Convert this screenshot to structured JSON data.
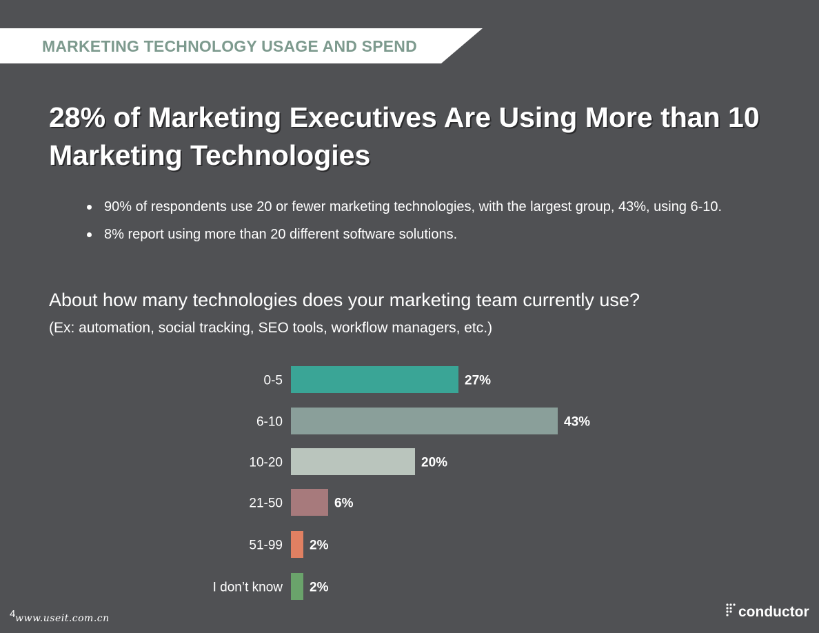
{
  "header": {
    "section_label": "MARKETING TECHNOLOGY USAGE AND SPEND",
    "banner_color": "#ffffff",
    "label_color": "#7d9a8e"
  },
  "title": "28% of Marketing Executives Are Using More than 10 Marketing Technologies",
  "bullets": [
    "90% of respondents use 20 or fewer marketing technologies, with the largest group, 43%, using 6-10.",
    "8% report using more than 20 different software solutions."
  ],
  "chart_data": {
    "type": "bar",
    "orientation": "horizontal",
    "title": "About how many technologies does your marketing team currently use?",
    "subtitle": "(Ex: automation, social tracking, SEO tools, workflow managers, etc.)",
    "categories": [
      "0-5",
      "6-10",
      "10-20",
      "21-50",
      "51-99",
      "I don’t know"
    ],
    "values": [
      27,
      43,
      20,
      6,
      2,
      2
    ],
    "value_labels": [
      "27%",
      "43%",
      "20%",
      "6%",
      "2%",
      "2%"
    ],
    "colors": [
      "#3aa596",
      "#8a9f9a",
      "#bac5bd",
      "#a77a7c",
      "#e08062",
      "#6aa36b"
    ],
    "xlim": [
      0,
      43
    ],
    "grid": false,
    "legend": "none"
  },
  "footer": {
    "page_number": "4",
    "watermark": "www.useit.com.cn",
    "brand": "conductor",
    "brand_suffix": "·"
  }
}
